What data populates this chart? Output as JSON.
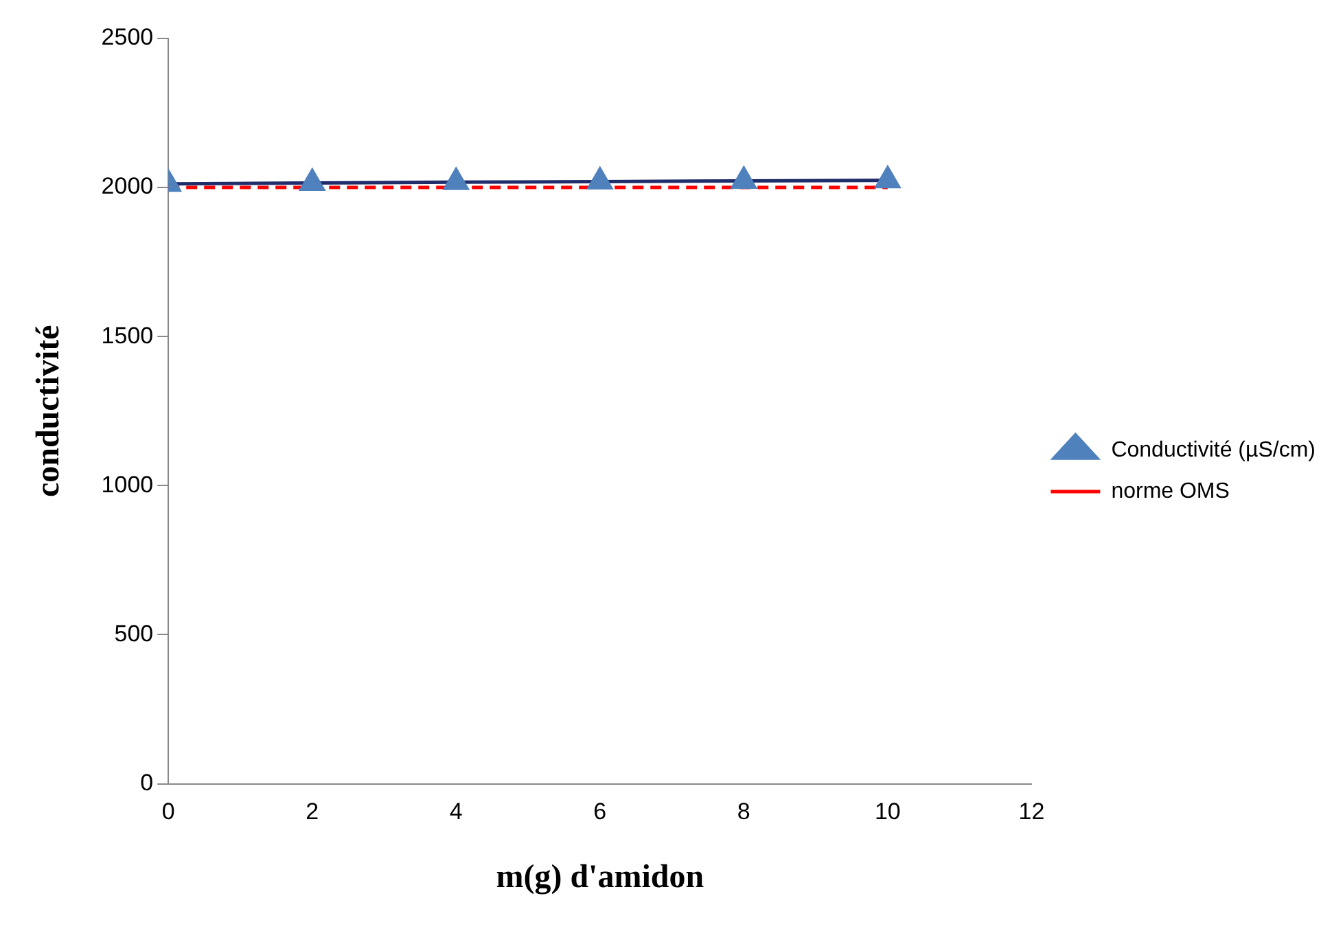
{
  "chart_data": {
    "type": "line",
    "xlabel": "m(g) d'amidon",
    "ylabel": "conductivité",
    "x": [
      0,
      2,
      4,
      6,
      8,
      10
    ],
    "series": [
      {
        "name": "Conductivité (µS/cm)",
        "color": "#4f81bd",
        "values": [
          2012,
          2015,
          2018,
          2020,
          2022,
          2024
        ],
        "marker": "triangle",
        "line_style": "solid"
      },
      {
        "name": "norme OMS",
        "color": "#ff0000",
        "values": [
          2000,
          2000,
          2000,
          2000,
          2000,
          2000
        ],
        "marker": "none",
        "line_style": "dashed"
      }
    ],
    "xlim": [
      0,
      12
    ],
    "xticks": [
      0,
      2,
      4,
      6,
      8,
      10,
      12
    ],
    "ylim": [
      0,
      2500
    ],
    "yticks": [
      0,
      500,
      1000,
      1500,
      2000,
      2500
    ],
    "grid": false,
    "legend": "right"
  }
}
